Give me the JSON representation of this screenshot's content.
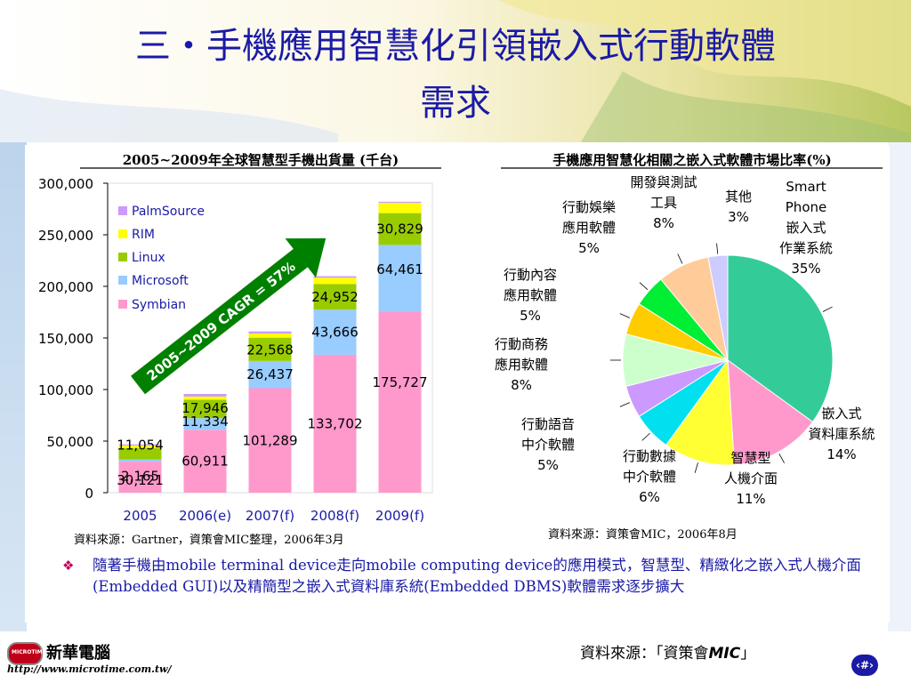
{
  "slide": {
    "title_line1": "三・手機應用智慧化引領嵌入式行動軟體",
    "title_line2": "需求",
    "bullet_marker": "❖",
    "bullet_text": "隨著手機由mobile terminal device走向mobile computing device的應用模式，智慧型、精緻化之嵌入式人機介面(Embedded GUI)以及精簡型之嵌入式資料庫系統(Embedded DBMS)軟體需求逐步擴大",
    "footer_source_prefix": "資料來源：「資策會",
    "footer_source_mic": "MIC",
    "footer_source_suffix": "」",
    "page_number": "‹#›",
    "logo_name": "新華電腦",
    "logo_badge": "MICROTIME",
    "logo_url": "http://www.microtime.com.tw/"
  },
  "colors": {
    "title": "#1a1aa6",
    "PalmSource": "#cc99ff",
    "RIM": "#ffff00",
    "Linux": "#99cc00",
    "Microsoft": "#99ccff",
    "Symbian": "#ff99cc",
    "arrow": "#008000"
  },
  "chart_data": [
    {
      "type": "bar",
      "stacked": true,
      "title": "2005~2009年全球智慧型手機出貨量 (千台)",
      "categories": [
        "2005",
        "2006(e)",
        "2007(f)",
        "2008(f)",
        "2009(f)"
      ],
      "ylim": [
        0,
        300000
      ],
      "yticks": [
        "0",
        "50,000",
        "100,000",
        "150,000",
        "200,000",
        "250,000",
        "300,000"
      ],
      "legend_position": "top-left",
      "series": [
        {
          "name": "Symbian",
          "values": [
            30121,
            60911,
            101289,
            133702,
            175727
          ],
          "labels": [
            "30,121",
            "60,911",
            "101,289",
            "133,702",
            "175,727"
          ]
        },
        {
          "name": "Microsoft",
          "values": [
            2165,
            11334,
            26437,
            43666,
            64461
          ],
          "labels": [
            "2,165",
            "11,334",
            "26,437",
            "43,666",
            "64,461"
          ]
        },
        {
          "name": "Linux",
          "values": [
            11054,
            17946,
            22568,
            24952,
            30829
          ],
          "labels": [
            "11,054",
            "17,946",
            "22,568",
            "24,952",
            "30,829"
          ]
        },
        {
          "name": "RIM",
          "values": [
            2500,
            3000,
            4000,
            6000,
            10000
          ],
          "labels": [
            "",
            "",
            "",
            "",
            ""
          ]
        },
        {
          "name": "PalmSource",
          "values": [
            1000,
            2500,
            2000,
            1500,
            1000
          ],
          "labels": [
            "",
            "",
            "",
            "",
            ""
          ]
        }
      ],
      "legend_order": [
        "PalmSource",
        "RIM",
        "Linux",
        "Microsoft",
        "Symbian"
      ],
      "annotation": "2005~2009 CAGR = 57%",
      "source": "資料來源：Gartner，資策會MIC整理，2006年3月"
    },
    {
      "type": "pie",
      "title": "手機應用智慧化相關之嵌入式軟體市場比率(%)",
      "slices": [
        {
          "label": [
            "Smart",
            "Phone",
            "嵌入式",
            "作業系統"
          ],
          "value": 35,
          "pct": "35%",
          "color": "#33cc99"
        },
        {
          "label": [
            "嵌入式",
            "資料庫系統"
          ],
          "value": 14,
          "pct": "14%",
          "color": "#ff99cc"
        },
        {
          "label": [
            "智慧型",
            "人機介面"
          ],
          "value": 11,
          "pct": "11%",
          "color": "#ffff33"
        },
        {
          "label": [
            "行動數據",
            "中介軟體"
          ],
          "value": 6,
          "pct": "6%",
          "color": "#00e0ee"
        },
        {
          "label": [
            "行動語音",
            "中介軟體"
          ],
          "value": 5,
          "pct": "5%",
          "color": "#cc99ff"
        },
        {
          "label": [
            "行動商務",
            "應用軟體"
          ],
          "value": 8,
          "pct": "8%",
          "color": "#ccffcc"
        },
        {
          "label": [
            "行動內容",
            "應用軟體"
          ],
          "value": 5,
          "pct": "5%",
          "color": "#ffcc00"
        },
        {
          "label": [
            "行動娛樂",
            "應用軟體"
          ],
          "value": 5,
          "pct": "5%",
          "color": "#00ee33"
        },
        {
          "label": [
            "開發與測試",
            "工具"
          ],
          "value": 8,
          "pct": "8%",
          "color": "#ffcc99"
        },
        {
          "label": [
            "其他"
          ],
          "value": 3,
          "pct": "3%",
          "color": "#ccccff"
        }
      ],
      "source": "資料來源：資策會MIC，2006年8月"
    }
  ]
}
